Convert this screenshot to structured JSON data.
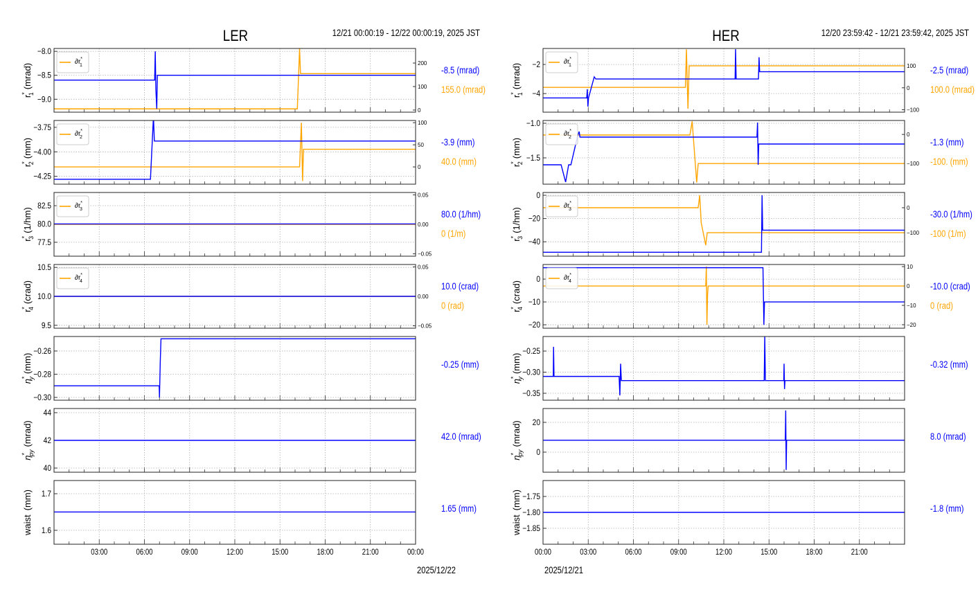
{
  "colors": {
    "primary": "#0000ff",
    "secondary": "#ffa500",
    "grid": "#b0b0b0"
  },
  "chart_data": [
    {
      "type": "line",
      "title": "LER",
      "time_range": "12/21 00:00:19 - 12/22 00:00:19, 2025 JST",
      "date_label": "2025/12/22",
      "x_unit": "hours since start",
      "xlim": [
        0,
        24
      ],
      "x_tick_hours": [
        3,
        6,
        9,
        12,
        15,
        18,
        21,
        24
      ],
      "x_tick_labels": [
        "03:00",
        "06:00",
        "09:00",
        "12:00",
        "15:00",
        "18:00",
        "21:00",
        "00:00"
      ],
      "panels": [
        {
          "ylabel": {
            "base": "r",
            "sub": "1",
            "unit": "(mrad)"
          },
          "ylim": [
            -9.27,
            -7.94
          ],
          "yticks": [
            -8.0,
            -8.5,
            -9.0
          ],
          "ytick_labels": [
            "−8.0",
            "−8.5",
            "−9.0"
          ],
          "primary": [
            [
              0,
              -8.6
            ],
            [
              6.68,
              -8.6
            ],
            [
              6.72,
              -8.0
            ],
            [
              6.76,
              -8.8
            ],
            [
              6.82,
              -9.2
            ],
            [
              6.86,
              -8.5
            ],
            [
              24,
              -8.5
            ]
          ],
          "legend": {
            "base": "∂r",
            "sub": "1"
          },
          "ylim2": [
            -9,
            262
          ],
          "yticks2": [
            0,
            100,
            200
          ],
          "ytick2_labels": [
            "0",
            "100",
            "200"
          ],
          "secondary": [
            [
              0,
              5
            ],
            [
              16.15,
              5
            ],
            [
              16.3,
              262
            ],
            [
              16.36,
              155
            ],
            [
              24,
              155
            ]
          ],
          "readout_primary": "-8.5 (mrad)",
          "readout_secondary": "155.0 (mrad)"
        },
        {
          "ylabel": {
            "base": "r",
            "sub": "2",
            "unit": "(mm)"
          },
          "ylim": [
            -4.33,
            -3.68
          ],
          "yticks": [
            -3.75,
            -4.0,
            -4.25
          ],
          "ytick_labels": [
            "−3.75",
            "−4.00",
            "−4.25"
          ],
          "primary": [
            [
              0,
              -4.28
            ],
            [
              6.4,
              -4.28
            ],
            [
              6.6,
              -3.64
            ],
            [
              6.66,
              -3.89
            ],
            [
              24,
              -3.89
            ]
          ],
          "legend": {
            "base": "∂r",
            "sub": "2"
          },
          "ylim2": [
            -39,
            105
          ],
          "yticks2": [
            0,
            50,
            100
          ],
          "ytick2_labels": [
            "0",
            "50",
            "100"
          ],
          "secondary": [
            [
              0,
              0
            ],
            [
              16.3,
              0
            ],
            [
              16.42,
              100
            ],
            [
              16.5,
              -32
            ],
            [
              16.56,
              40
            ],
            [
              24,
              40
            ]
          ],
          "readout_primary": "-3.9 (mm)",
          "readout_secondary": "40.0 (mm)"
        },
        {
          "ylabel": {
            "base": "r",
            "sub": "3",
            "unit": "(1/hm)"
          },
          "ylim": [
            75.6,
            84.3
          ],
          "yticks": [
            82.5,
            80.0,
            77.5
          ],
          "ytick_labels": [
            "82.5",
            "80.0",
            "77.5"
          ],
          "primary": [
            [
              0,
              80
            ],
            [
              24,
              80
            ]
          ],
          "legend": {
            "base": "∂r",
            "sub": "3"
          },
          "ylim2": [
            -0.054,
            0.054
          ],
          "yticks2": [
            0.05,
            0,
            -0.05
          ],
          "ytick2_labels": [
            "0.05",
            "0.00",
            "−0.05"
          ],
          "secondary": [
            [
              0,
              0
            ],
            [
              24,
              0
            ]
          ],
          "readout_primary": "80.0 (1/hm)",
          "readout_secondary": "0 (1/m)"
        },
        {
          "ylabel": {
            "base": "r",
            "sub": "4",
            "unit": "(crad)"
          },
          "ylim": [
            9.45,
            10.55
          ],
          "yticks": [
            10.5,
            10.0,
            9.5
          ],
          "ytick_labels": [
            "10.5",
            "10.0",
            "9.5"
          ],
          "primary": [
            [
              0,
              10
            ],
            [
              24,
              10
            ]
          ],
          "legend": {
            "base": "∂r",
            "sub": "4"
          },
          "ylim2": [
            -0.054,
            0.054
          ],
          "yticks2": [
            0.05,
            0,
            -0.05
          ],
          "ytick2_labels": [
            "0.05",
            "0.00",
            "−0.05"
          ],
          "secondary": [
            [
              0,
              0
            ],
            [
              24,
              0
            ]
          ],
          "readout_primary": "10.0 (crad)",
          "readout_secondary": "0 (rad)"
        },
        {
          "ylabel": {
            "base": "η",
            "sub": "y",
            "unit": "(mm)"
          },
          "ylim": [
            -0.3024,
            -0.2475
          ],
          "yticks": [
            -0.26,
            -0.28,
            -0.3
          ],
          "ytick_labels": [
            "−0.26",
            "−0.28",
            "−0.30"
          ],
          "primary": [
            [
              0,
              -0.29
            ],
            [
              6.98,
              -0.29
            ],
            [
              7.0,
              -0.3
            ],
            [
              7.05,
              -0.27
            ],
            [
              7.1,
              -0.2495
            ],
            [
              24,
              -0.2495
            ]
          ],
          "readout_primary": "-0.25 (mm)"
        },
        {
          "ylabel": {
            "base": "η",
            "sub": "py",
            "unit": "(mrad)"
          },
          "ylim": [
            39.7,
            44.3
          ],
          "yticks": [
            44,
            42,
            40
          ],
          "ytick_labels": [
            "44",
            "42",
            "40"
          ],
          "primary": [
            [
              0,
              42
            ],
            [
              24,
              42
            ]
          ],
          "readout_primary": "42.0 (mrad)"
        },
        {
          "ylabel": {
            "base": "waist",
            "sub": "",
            "unit": "(mm)",
            "plain": true
          },
          "ylim": [
            1.562,
            1.736
          ],
          "yticks": [
            1.7,
            1.6
          ],
          "ytick_labels": [
            "1.7",
            "1.6"
          ],
          "primary": [
            [
              0,
              1.65
            ],
            [
              24,
              1.65
            ]
          ],
          "readout_primary": "1.65 (mm)"
        }
      ]
    },
    {
      "type": "line",
      "title": "HER",
      "time_range": "12/20 23:59:42 - 12/21 23:59:42, 2025 JST",
      "date_label": "2025/12/21",
      "x_unit": "hours since start",
      "xlim": [
        0,
        24
      ],
      "x_tick_hours": [
        0,
        3,
        6,
        9,
        12,
        15,
        18,
        21
      ],
      "x_tick_labels": [
        "00:00",
        "03:00",
        "06:00",
        "09:00",
        "12:00",
        "15:00",
        "18:00",
        "21:00"
      ],
      "panels": [
        {
          "ylabel": {
            "base": "r",
            "sub": "1",
            "unit": "(mrad)"
          },
          "ylim": [
            -5.28,
            -0.9
          ],
          "yticks": [
            -2,
            -4
          ],
          "ytick_labels": [
            "−2",
            "−4"
          ],
          "primary": [
            [
              0,
              -4.3
            ],
            [
              2.9,
              -4.3
            ],
            [
              2.94,
              -3.7
            ],
            [
              2.98,
              -4.9
            ],
            [
              3.02,
              -4.3
            ],
            [
              3.4,
              -2.85
            ],
            [
              3.5,
              -3.0
            ],
            [
              12.75,
              -3.0
            ],
            [
              12.78,
              -0.95
            ],
            [
              12.82,
              -3.0
            ],
            [
              14.3,
              -3.0
            ],
            [
              14.34,
              -1.5
            ],
            [
              14.38,
              -2.5
            ],
            [
              24,
              -2.5
            ]
          ],
          "legend": {
            "base": "∂r",
            "sub": "1"
          },
          "ylim2": [
            -111,
            179
          ],
          "yticks2": [
            100,
            0,
            -100
          ],
          "ytick2_labels": [
            "100",
            "0",
            "−100"
          ],
          "secondary": [
            [
              0,
              2
            ],
            [
              9.45,
              2
            ],
            [
              9.52,
              175
            ],
            [
              9.62,
              -95
            ],
            [
              9.7,
              100
            ],
            [
              24,
              100
            ]
          ],
          "readout_primary": "-2.5 (mrad)",
          "readout_secondary": "100.0 (mrad)"
        },
        {
          "ylabel": {
            "base": "r",
            "sub": "2",
            "unit": "(mm)"
          },
          "ylim": [
            -1.88,
            -0.96
          ],
          "yticks": [
            -1.0,
            -1.5
          ],
          "ytick_labels": [
            "−1.0",
            "−1.5"
          ],
          "primary": [
            [
              0,
              -1.6
            ],
            [
              1.2,
              -1.6
            ],
            [
              1.5,
              -1.85
            ],
            [
              1.7,
              -1.6
            ],
            [
              1.85,
              -1.6
            ],
            [
              2.3,
              -1.18
            ],
            [
              2.4,
              -1.12
            ],
            [
              2.45,
              -1.2
            ],
            [
              14.2,
              -1.2
            ],
            [
              14.24,
              -0.99
            ],
            [
              14.28,
              -1.6
            ],
            [
              14.32,
              -1.3
            ],
            [
              24,
              -1.3
            ]
          ],
          "legend": {
            "base": "∂r",
            "sub": "2"
          },
          "ylim2": [
            -171,
            48
          ],
          "yticks2": [
            0,
            -100
          ],
          "ytick2_labels": [
            "0",
            "−100"
          ],
          "secondary": [
            [
              0,
              -2
            ],
            [
              9.75,
              -2
            ],
            [
              9.9,
              45
            ],
            [
              10.2,
              -165
            ],
            [
              10.3,
              -100
            ],
            [
              24,
              -100
            ]
          ],
          "readout_primary": "-1.3 (mm)",
          "readout_secondary": "-100. (mm)"
        },
        {
          "ylabel": {
            "base": "r",
            "sub": "3",
            "unit": "(1/hm)"
          },
          "ylim": [
            -52.4,
            2.4
          ],
          "yticks": [
            0,
            -20,
            -40
          ],
          "ytick_labels": [
            "0",
            "−20",
            "−40"
          ],
          "primary": [
            [
              0,
              -49
            ],
            [
              14.5,
              -49
            ],
            [
              14.54,
              0
            ],
            [
              14.58,
              -30
            ],
            [
              24,
              -30
            ]
          ],
          "legend": {
            "base": "∂r",
            "sub": "3"
          },
          "ylim2": [
            -194,
            61
          ],
          "yticks2": [
            0,
            -100
          ],
          "ytick2_labels": [
            "0",
            "−100"
          ],
          "secondary": [
            [
              0,
              0
            ],
            [
              10.3,
              0
            ],
            [
              10.4,
              50
            ],
            [
              10.5,
              -60
            ],
            [
              10.8,
              -150
            ],
            [
              10.9,
              -100
            ],
            [
              24,
              -100
            ]
          ],
          "readout_primary": "-30.0 (1/hm)",
          "readout_secondary": "-100 (1/m)"
        },
        {
          "ylabel": {
            "base": "r",
            "sub": "4",
            "unit": "(crad)"
          },
          "ylim": [
            -21.5,
            6.4
          ],
          "yticks": [
            0,
            -10,
            -20
          ],
          "ytick_labels": [
            "0",
            "−10",
            "−20"
          ],
          "primary": [
            [
              0,
              5
            ],
            [
              14.6,
              5
            ],
            [
              14.66,
              -20
            ],
            [
              14.7,
              -10
            ],
            [
              24,
              -10
            ]
          ],
          "legend": {
            "base": "∂r",
            "sub": "4"
          },
          "ylim2": [
            -21.8,
            11.1
          ],
          "yticks2": [
            10,
            0,
            -10,
            -20
          ],
          "ytick2_labels": [
            "10",
            "0",
            "−10",
            "−20"
          ],
          "secondary": [
            [
              0,
              0
            ],
            [
              10.8,
              0
            ],
            [
              10.84,
              10
            ],
            [
              10.88,
              -20
            ],
            [
              10.92,
              -5
            ],
            [
              10.96,
              0
            ],
            [
              24,
              0
            ]
          ],
          "readout_primary": "-10.0 (crad)",
          "readout_secondary": "0 (rad)"
        },
        {
          "ylabel": {
            "base": "η",
            "sub": "y",
            "unit": "(mm)"
          },
          "ylim": [
            -0.3664,
            -0.2155
          ],
          "yticks": [
            -0.25,
            -0.3,
            -0.35
          ],
          "ytick_labels": [
            "−0.25",
            "−0.30",
            "−0.35"
          ],
          "primary": [
            [
              0,
              -0.31
            ],
            [
              0.68,
              -0.31
            ],
            [
              0.7,
              -0.24
            ],
            [
              0.73,
              -0.31
            ],
            [
              5.05,
              -0.31
            ],
            [
              5.1,
              -0.355
            ],
            [
              5.15,
              -0.28
            ],
            [
              5.2,
              -0.32
            ],
            [
              14.68,
              -0.32
            ],
            [
              14.72,
              -0.215
            ],
            [
              14.76,
              -0.32
            ],
            [
              15.98,
              -0.32
            ],
            [
              16.0,
              -0.28
            ],
            [
              16.03,
              -0.34
            ],
            [
              16.06,
              -0.32
            ],
            [
              24,
              -0.32
            ]
          ],
          "readout_primary": "-0.32 (mm)"
        },
        {
          "ylabel": {
            "base": "η",
            "sub": "py",
            "unit": "(mrad)"
          },
          "ylim": [
            -13.5,
            29.3
          ],
          "yticks": [
            20,
            0
          ],
          "ytick_labels": [
            "20",
            "0"
          ],
          "primary": [
            [
              0,
              8
            ],
            [
              16.08,
              8
            ],
            [
              16.11,
              28
            ],
            [
              16.14,
              -12
            ],
            [
              16.17,
              8
            ],
            [
              24,
              8
            ]
          ],
          "readout_primary": "8.0 (mrad)"
        },
        {
          "ylabel": {
            "base": "waist",
            "sub": "",
            "unit": "(mm)",
            "plain": true
          },
          "ylim": [
            -1.9,
            -1.7
          ],
          "yticks": [
            -1.75,
            -1.8,
            -1.85
          ],
          "ytick_labels": [
            "−1.75",
            "−1.80",
            "−1.85"
          ],
          "primary": [
            [
              0,
              -1.8
            ],
            [
              24,
              -1.8
            ]
          ],
          "readout_primary": "-1.8 (mm)"
        }
      ]
    }
  ]
}
